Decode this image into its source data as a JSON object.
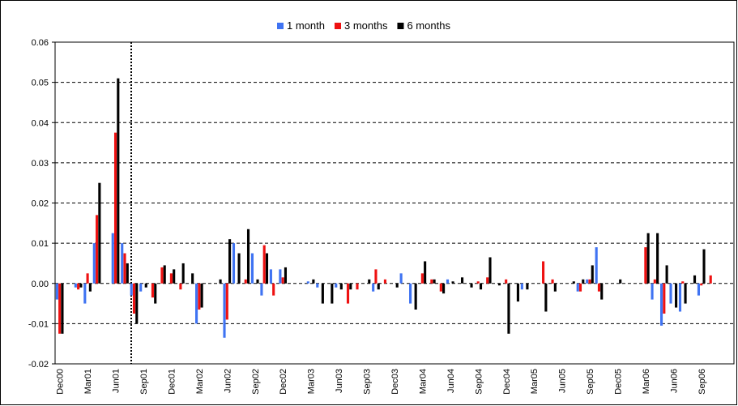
{
  "chart_data": {
    "type": "bar",
    "categories": [
      "Dec00",
      null,
      null,
      "Mar01",
      null,
      null,
      "Jun01",
      null,
      null,
      "Sep01",
      null,
      null,
      "Dec01",
      null,
      null,
      "Mar02",
      null,
      null,
      "Jun02",
      null,
      null,
      "Sep02",
      null,
      null,
      "Dec02",
      null,
      null,
      "Mar03",
      null,
      null,
      "Jun03",
      null,
      null,
      "Sep03",
      null,
      null,
      "Dec03",
      null,
      null,
      "Mar04",
      null,
      null,
      "Jun04",
      null,
      null,
      "Sep04",
      null,
      null,
      "Dec04",
      null,
      null,
      "Mar05",
      null,
      null,
      "Jun05",
      null,
      null,
      "Sep05",
      null,
      null,
      "Dec05",
      null,
      null,
      "Mar06",
      null,
      null,
      "Jun06",
      null,
      null,
      "Sep06",
      null,
      null,
      null
    ],
    "series": [
      {
        "name": "1 month",
        "color": "#3f73f2",
        "values": [
          -0.004,
          0,
          -0.001,
          -0.005,
          0.01,
          0,
          0.0125,
          0.01,
          -0.003,
          -0.002,
          0,
          0,
          0,
          0,
          0,
          -0.01,
          0,
          0,
          -0.0135,
          0.01,
          0,
          0.0075,
          -0.003,
          0.0035,
          0.0035,
          0,
          0,
          0.0005,
          -0.001,
          0,
          -0.001,
          0,
          0,
          0,
          -0.002,
          0,
          0,
          0.0025,
          -0.005,
          0,
          0,
          0,
          0.001,
          0,
          0,
          0,
          0,
          0,
          0,
          0,
          -0.0015,
          0,
          0,
          0,
          0,
          0,
          -0.002,
          0.001,
          0.009,
          0,
          0,
          0,
          0,
          0,
          -0.004,
          -0.0105,
          -0.005,
          -0.007,
          0,
          -0.003,
          0,
          0,
          0
        ]
      },
      {
        "name": "3 months",
        "color": "#ee1111",
        "values": [
          -0.0125,
          0,
          -0.0015,
          0.0025,
          0.017,
          0,
          0.0375,
          0.0075,
          -0.0075,
          0,
          -0.0035,
          0.004,
          0.0025,
          -0.0015,
          0,
          -0.0065,
          0,
          0,
          -0.009,
          0,
          0.001,
          0,
          0.0095,
          -0.003,
          0.0015,
          0,
          0,
          0,
          0,
          0,
          0,
          -0.005,
          -0.0015,
          0,
          0.0035,
          0.001,
          0,
          0,
          0,
          0.0025,
          0.001,
          -0.002,
          0,
          0,
          0,
          0.0005,
          0.0015,
          0,
          0.001,
          0,
          0,
          0,
          0.0055,
          0.001,
          0,
          0,
          -0.002,
          0.001,
          -0.002,
          0,
          0,
          0,
          0,
          0.009,
          0.001,
          -0.0075,
          0,
          0.0005,
          0,
          -0.0005,
          0.002,
          0,
          0
        ]
      },
      {
        "name": "6 months",
        "color": "#000000",
        "values": [
          -0.0125,
          0,
          -0.001,
          -0.002,
          0.025,
          0,
          0.051,
          0.005,
          -0.01,
          -0.001,
          -0.005,
          0.0045,
          0.0035,
          0.005,
          0.0025,
          -0.006,
          0,
          0.001,
          0.011,
          0.0075,
          0.0135,
          0.001,
          0.0075,
          0,
          0.004,
          0,
          0,
          0.001,
          -0.005,
          -0.005,
          -0.0015,
          -0.0015,
          0,
          0.001,
          -0.0015,
          0,
          -0.001,
          0,
          -0.0065,
          0.0055,
          0.001,
          -0.0025,
          0.0005,
          0.0015,
          -0.001,
          -0.0015,
          0.0065,
          -0.0005,
          -0.0125,
          -0.0045,
          -0.0015,
          0,
          -0.007,
          -0.002,
          0,
          0.0005,
          0.001,
          0.0045,
          -0.004,
          0,
          0.001,
          0,
          0,
          0.0125,
          0.0125,
          0.0045,
          -0.006,
          -0.005,
          0.002,
          0.0085,
          0,
          0,
          0
        ]
      }
    ],
    "ylim": [
      -0.02,
      0.06
    ],
    "yticks": [
      -0.02,
      -0.01,
      {
        "value": 0,
        "label": "0.00"
      },
      0.01,
      0.02,
      0.03,
      0.04,
      0.05,
      0.06
    ],
    "grid": true,
    "legend": "top"
  }
}
